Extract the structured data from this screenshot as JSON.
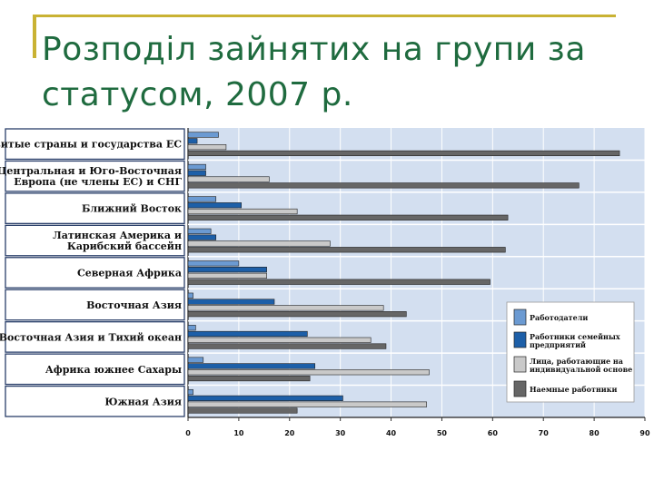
{
  "slide": {
    "title": "Розподіл зайнятих на групи за статусом, 2007 р."
  },
  "colors": {
    "employers": "#6b9ad2",
    "family_workers": "#1d5fa8",
    "own_account": "#c9c9c9",
    "wage_workers": "#666666",
    "plot_bg": "#d3dff0",
    "title": "#1f6b3f",
    "accent": "#c9b233"
  },
  "chart_data": {
    "type": "bar",
    "orientation": "horizontal",
    "categories": [
      [
        "Развитые страны и государства ЕС"
      ],
      [
        "Центральная и Юго-Восточная",
        "Европа (не члены ЕС) и СНГ"
      ],
      [
        "Ближний Восток"
      ],
      [
        "Латинская Америка и",
        "Карибский бассейн"
      ],
      [
        "Северная Африка"
      ],
      [
        "Восточная Азия"
      ],
      [
        "Юго-Восточная Азия и Тихий океан"
      ],
      [
        "Африка южнее Сахары"
      ],
      [
        "Южная Азия"
      ]
    ],
    "series": [
      {
        "name": "Работодатели",
        "values": [
          6,
          3.5,
          5.5,
          4.5,
          10,
          1,
          1.5,
          3,
          1
        ]
      },
      {
        "name": "Работники семейных предприятий",
        "values": [
          1.8,
          3.5,
          10.5,
          5.5,
          15.5,
          17,
          23.5,
          25,
          30.5
        ]
      },
      {
        "name": "Лица, работающие на индивидуальной основе",
        "values": [
          7.5,
          16,
          21.5,
          28,
          15.5,
          38.5,
          36,
          47.5,
          47
        ]
      },
      {
        "name": "Наемные работники",
        "values": [
          85,
          77,
          63,
          62.5,
          59.5,
          43,
          39,
          24,
          21.5
        ]
      }
    ],
    "xlim": [
      0,
      90
    ],
    "xticks": [
      "0",
      "10",
      "20",
      "30",
      "40",
      "50",
      "60",
      "70",
      "80",
      "90"
    ],
    "legend_position": "right",
    "grid": true
  }
}
